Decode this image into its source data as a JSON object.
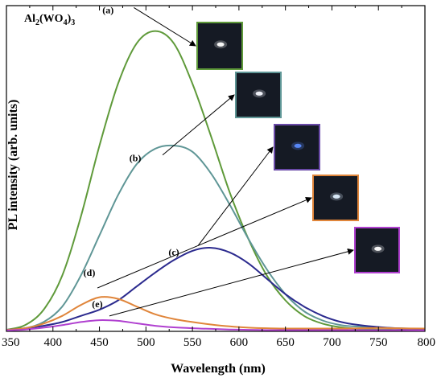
{
  "chart_data": {
    "type": "line",
    "title": "Al2(WO4)3",
    "title_parts": [
      {
        "text": "Al",
        "sub": false
      },
      {
        "text": "2",
        "sub": true
      },
      {
        "text": "(WO",
        "sub": false
      },
      {
        "text": "4",
        "sub": true
      },
      {
        "text": ")",
        "sub": false
      },
      {
        "text": "3",
        "sub": true
      }
    ],
    "xlabel": "Wavelength (nm)",
    "ylabel": "PL intensity (arb. units)",
    "xlim": [
      350,
      800
    ],
    "ylim": [
      0,
      100
    ],
    "xticks": [
      350,
      400,
      450,
      500,
      550,
      600,
      650,
      700,
      750,
      800
    ],
    "grid": false,
    "y_tick_labels_shown": false,
    "series": [
      {
        "name": "(a)",
        "color": "#5f9a3a",
        "x": [
          350,
          370,
          390,
          410,
          430,
          450,
          470,
          490,
          510,
          530,
          550,
          570,
          590,
          610,
          630,
          650,
          670,
          690,
          710,
          730,
          750,
          770,
          800
        ],
        "y": [
          0.5,
          2,
          7,
          18,
          37,
          60,
          80,
          93,
          97,
          93,
          80,
          63,
          45,
          30,
          18,
          10,
          5,
          2.5,
          1.3,
          0.8,
          0.6,
          0.5,
          0.4
        ]
      },
      {
        "name": "(b)",
        "color": "#5f9696",
        "x": [
          350,
          370,
          390,
          410,
          430,
          450,
          470,
          490,
          510,
          530,
          550,
          570,
          590,
          610,
          630,
          650,
          670,
          690,
          710,
          730,
          750,
          770,
          800
        ],
        "y": [
          0.5,
          1,
          3,
          8,
          18,
          31,
          44,
          54,
          59,
          60,
          58,
          51,
          41,
          30,
          20,
          12,
          6.5,
          3.5,
          2,
          1.5,
          1.2,
          1,
          0.8
        ]
      },
      {
        "name": "(c)",
        "color": "#2b2a8e",
        "x": [
          350,
          370,
          390,
          410,
          430,
          450,
          470,
          490,
          510,
          530,
          550,
          570,
          590,
          610,
          630,
          650,
          670,
          690,
          710,
          730,
          750,
          770,
          800
        ],
        "y": [
          0.5,
          1,
          1.8,
          3,
          5,
          7,
          10,
          14.5,
          19,
          23,
          26,
          27,
          25.5,
          22,
          17,
          12,
          8,
          5,
          3,
          2,
          1.4,
          1,
          0.7
        ]
      },
      {
        "name": "(d)",
        "color": "#e0853a",
        "x": [
          350,
          370,
          390,
          410,
          430,
          450,
          470,
          490,
          510,
          530,
          550,
          570,
          590,
          610,
          630,
          650,
          670,
          690,
          710,
          730,
          750,
          770,
          800
        ],
        "y": [
          0.5,
          1,
          2.5,
          5,
          8.5,
          11,
          10.5,
          8,
          5.5,
          4,
          3,
          2.2,
          1.6,
          1.2,
          1,
          0.9,
          0.9,
          0.9,
          0.9,
          1,
          1.1,
          1,
          0.9
        ]
      },
      {
        "name": "(e)",
        "color": "#b040d0",
        "x": [
          350,
          370,
          390,
          410,
          430,
          450,
          470,
          490,
          510,
          530,
          550,
          570,
          590,
          610,
          630,
          650,
          670,
          690,
          710,
          730,
          750,
          770,
          800
        ],
        "y": [
          0.3,
          0.6,
          1.2,
          2,
          3,
          3.6,
          3.4,
          2.6,
          1.8,
          1.3,
          1,
          0.8,
          0.6,
          0.5,
          0.4,
          0.4,
          0.4,
          0.4,
          0.4,
          0.4,
          0.4,
          0.4,
          0.3
        ]
      }
    ],
    "annotations": [
      {
        "label": "(a)",
        "x": 487,
        "y": 96,
        "inset_border": "#5f9a3a",
        "glow_color": "#ffffff"
      },
      {
        "label": "(b)",
        "x": 511,
        "y": 58,
        "inset_border": "#5f9696",
        "glow_color": "#f6f8ff"
      },
      {
        "label": "(c)",
        "x": 575,
        "y": 24,
        "inset_border": "#6a4aa8",
        "glow_color": "#5a8cff"
      },
      {
        "label": "(d)",
        "x": 453,
        "y": 14,
        "inset_border": "#e0853a",
        "glow_color": "#dfefff"
      },
      {
        "label": "(e)",
        "x": 459,
        "y": 6,
        "inset_border": "#b040d0",
        "glow_color": "#ffffff"
      }
    ]
  }
}
